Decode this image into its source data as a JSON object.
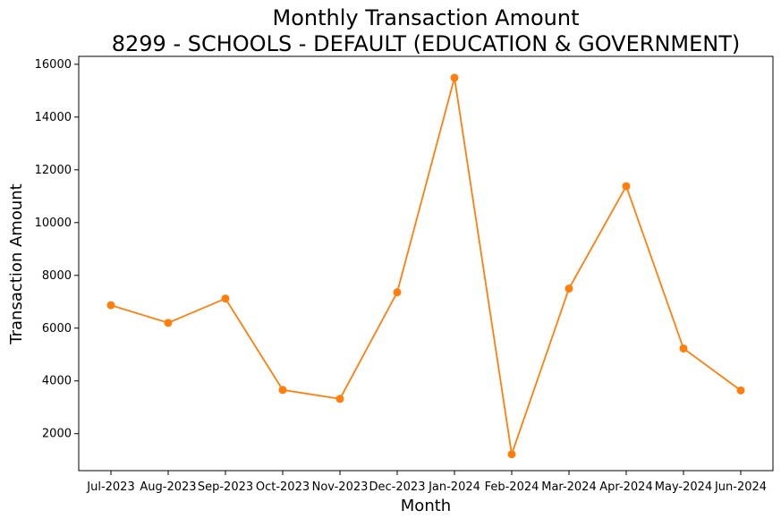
{
  "chart_data": {
    "type": "line",
    "title_line1": "Monthly Transaction Amount",
    "title_line2": "8299 - SCHOOLS - DEFAULT (EDUCATION & GOVERNMENT)",
    "xlabel": "Month",
    "ylabel": "Transaction Amount",
    "categories": [
      "Jul-2023",
      "Aug-2023",
      "Sep-2023",
      "Oct-2023",
      "Nov-2023",
      "Dec-2023",
      "Jan-2024",
      "Feb-2024",
      "Mar-2024",
      "Apr-2024",
      "May-2024",
      "Jun-2024"
    ],
    "series": [
      {
        "values": [
          6870,
          6200,
          7120,
          3660,
          3320,
          7360,
          15490,
          1220,
          7500,
          11380,
          5230,
          3640
        ]
      }
    ],
    "ylim": [
      600,
      16300
    ],
    "yticks": [
      2000,
      4000,
      6000,
      8000,
      10000,
      12000,
      14000,
      16000
    ],
    "ytick_labels": [
      "2000",
      "4000",
      "6000",
      "8000",
      "10000",
      "12000",
      "14000",
      "16000"
    ],
    "grid": false,
    "colors": {
      "line": "#ff7f0e",
      "axis": "#000000",
      "background": "#ffffff"
    }
  }
}
